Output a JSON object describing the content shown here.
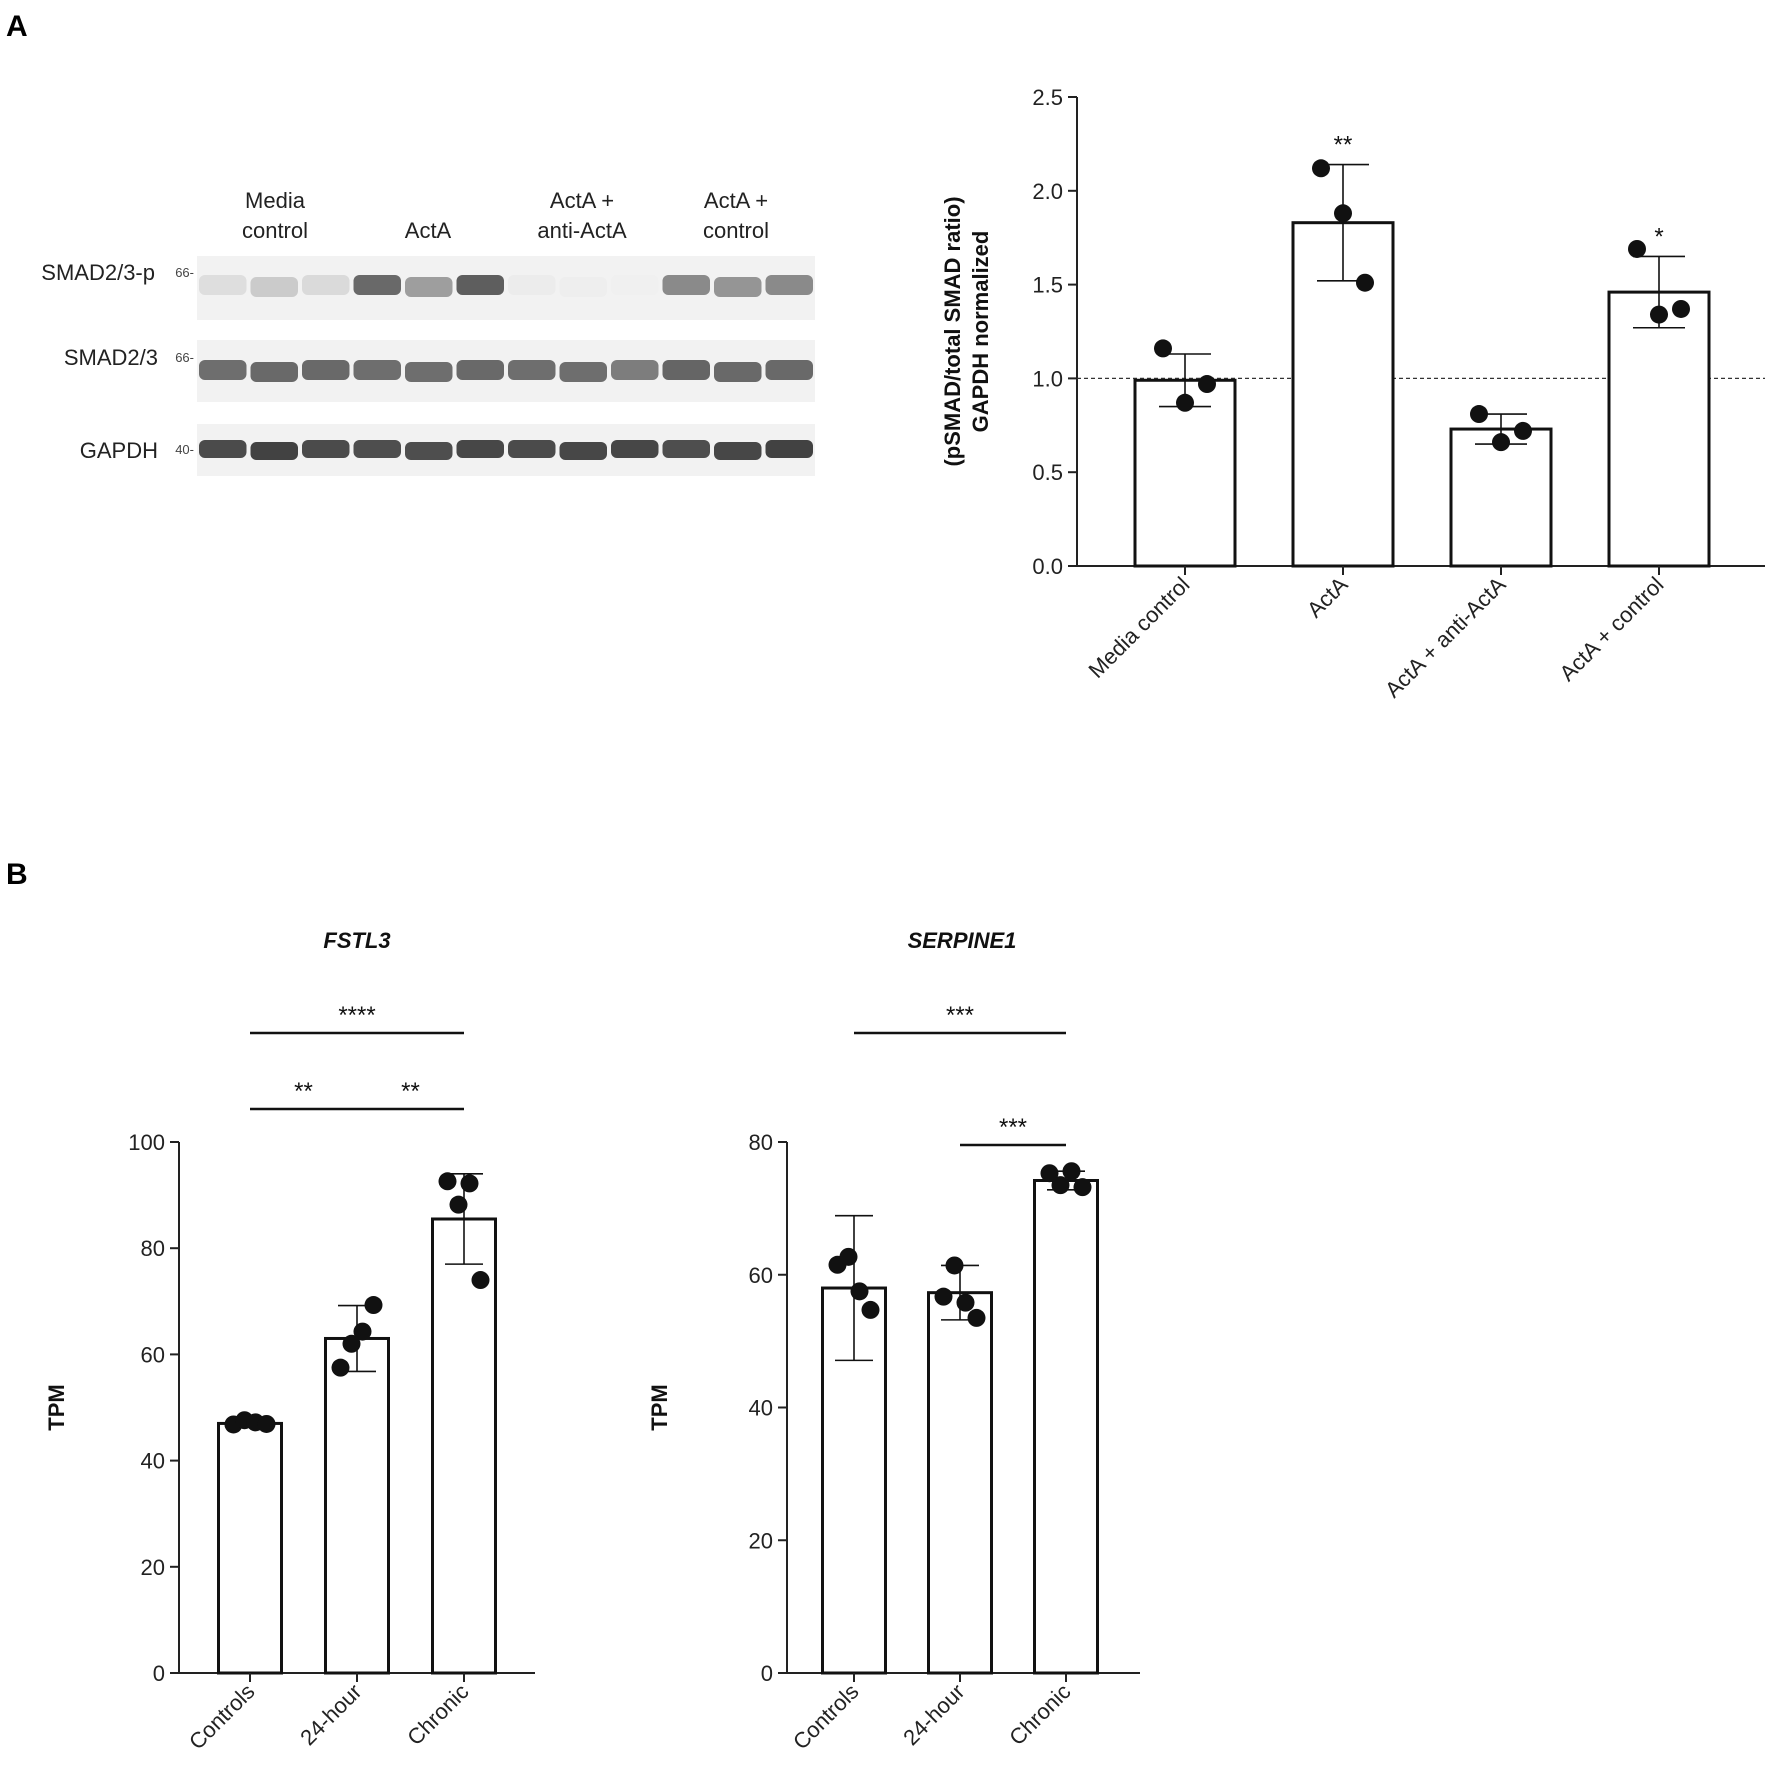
{
  "panels": {
    "a_letter": "A",
    "b_letter": "B"
  },
  "blot": {
    "headers": [
      [
        "Media",
        "control"
      ],
      [
        "ActA"
      ],
      [
        "ActA +",
        "anti-ActA"
      ],
      [
        "ActA +",
        "control"
      ]
    ],
    "rows": [
      {
        "label": "SMAD2/3-p",
        "mw": "66-",
        "intensities": [
          0.12,
          0.22,
          0.14,
          0.72,
          0.45,
          0.78,
          0.05,
          0.04,
          0.03,
          0.55,
          0.5,
          0.55
        ]
      },
      {
        "label": "SMAD2/3",
        "mw": "66-",
        "intensities": [
          0.7,
          0.72,
          0.72,
          0.7,
          0.7,
          0.72,
          0.7,
          0.7,
          0.62,
          0.74,
          0.72,
          0.72
        ]
      },
      {
        "label": "GAPDH",
        "mw": "40-",
        "intensities": [
          0.88,
          0.92,
          0.88,
          0.86,
          0.86,
          0.9,
          0.88,
          0.9,
          0.9,
          0.86,
          0.9,
          0.92
        ]
      }
    ]
  },
  "chart_data": [
    {
      "type": "bar",
      "panel": "A",
      "categories": [
        "Media control",
        "ActA",
        "ActA + anti-ActA",
        "ActA + control"
      ],
      "values": [
        0.99,
        1.83,
        0.73,
        1.46
      ],
      "error_sd": [
        0.14,
        0.31,
        0.08,
        0.19
      ],
      "points": [
        [
          1.16,
          0.87,
          0.97
        ],
        [
          2.12,
          1.88,
          1.51
        ],
        [
          0.81,
          0.66,
          0.72
        ],
        [
          1.69,
          1.34,
          1.37
        ]
      ],
      "significance": [
        "",
        "**",
        "",
        "*"
      ],
      "reference_line": 1.0,
      "ylabel": [
        "(pSMAD/total SMAD ratio)",
        "GAPDH normalized"
      ],
      "ylim": [
        0,
        2.5
      ],
      "yticks": [
        "0.0",
        "0.5",
        "1.0",
        "1.5",
        "2.0",
        "2.5"
      ]
    },
    {
      "type": "bar",
      "panel": "B",
      "title": "FSTL3",
      "categories": [
        "Controls",
        "24-hour",
        "Chronic"
      ],
      "values": [
        47,
        63,
        85.5
      ],
      "error_sd": [
        0.6,
        6.2,
        8.5
      ],
      "points": [
        [
          46.8,
          47.6,
          47.2,
          46.9
        ],
        [
          57.5,
          62.0,
          64.3,
          69.3
        ],
        [
          92.6,
          88.2,
          92.2,
          74.0
        ]
      ],
      "brackets": [
        {
          "from": 0,
          "to": 2,
          "label": "****",
          "level": 2
        },
        {
          "from": 0,
          "to": 1,
          "label": "**",
          "level": 1
        },
        {
          "from": 1,
          "to": 2,
          "label": "**",
          "level": 1
        }
      ],
      "ylabel": "TPM",
      "ylim": [
        0,
        100
      ],
      "yticks": [
        "0",
        "20",
        "40",
        "60",
        "80",
        "100"
      ]
    },
    {
      "type": "bar",
      "panel": "B",
      "title": "SERPINE1",
      "categories": [
        "Controls",
        "24-hour",
        "Chronic"
      ],
      "values": [
        58,
        57.3,
        74.2
      ],
      "error_sd": [
        10.9,
        4.1,
        1.4
      ],
      "points": [
        [
          61.5,
          62.7,
          57.5,
          54.7
        ],
        [
          56.7,
          61.4,
          55.8,
          53.5
        ],
        [
          75.3,
          73.5,
          75.6,
          73.2
        ]
      ],
      "brackets": [
        {
          "from": 0,
          "to": 2,
          "label": "***",
          "level": 2
        },
        {
          "from": 1,
          "to": 2,
          "label": "***",
          "level": 1
        }
      ],
      "ylabel": "TPM",
      "ylim": [
        0,
        80
      ],
      "yticks": [
        "0",
        "20",
        "40",
        "60",
        "80"
      ]
    }
  ]
}
